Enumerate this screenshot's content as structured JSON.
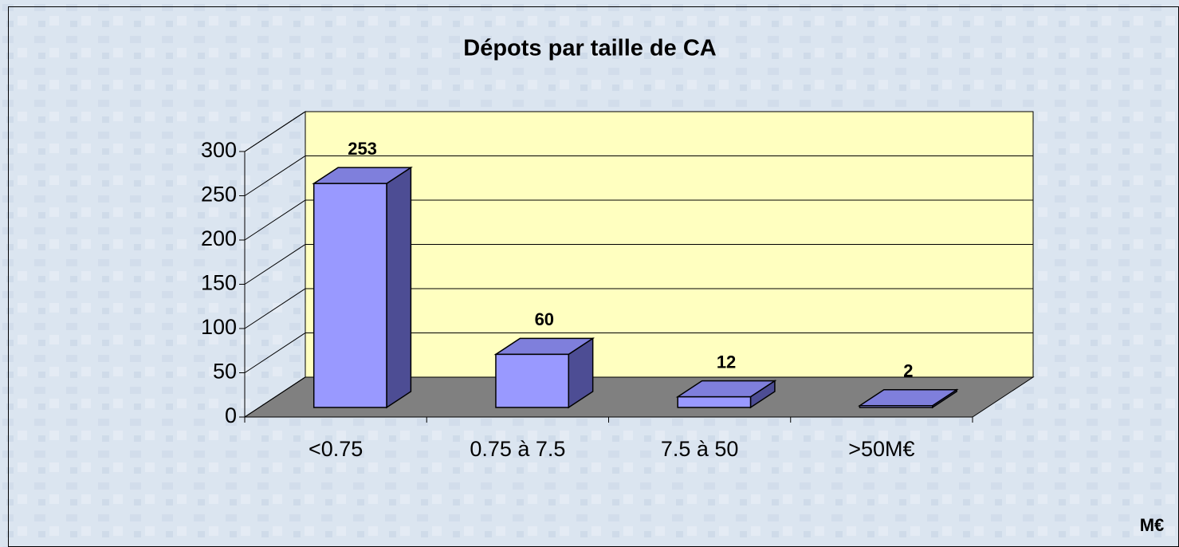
{
  "chart_data": {
    "type": "bar3d",
    "title": "Dépots par taille de CA",
    "categories": [
      "<0.75",
      "0.75 à 7.5",
      "7.5 à 50",
      ">50M€"
    ],
    "values": [
      253,
      60,
      12,
      2
    ],
    "color": "#9999ff",
    "ylim": [
      0,
      300
    ],
    "yticks": [
      0,
      50,
      100,
      150,
      200,
      250,
      300
    ],
    "grid": true,
    "annotation": "M€"
  }
}
